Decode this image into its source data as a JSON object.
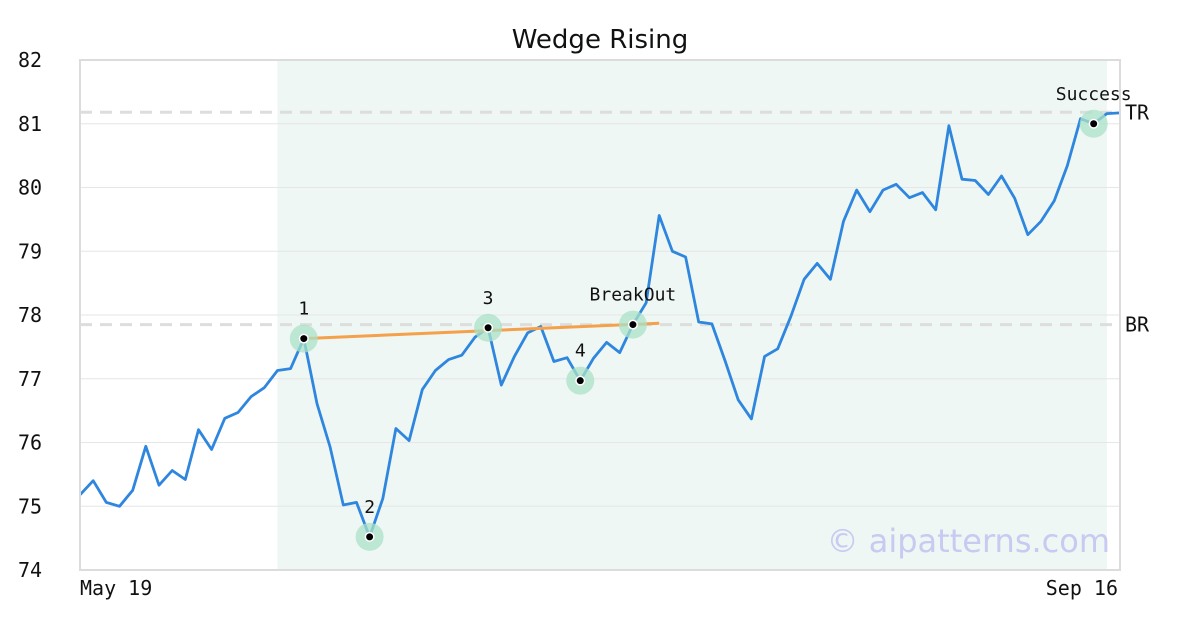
{
  "chart_data": {
    "type": "line",
    "title": "Wedge Rising",
    "ylim": [
      74,
      82
    ],
    "y_ticks": [
      "74",
      "75",
      "76",
      "77",
      "78",
      "79",
      "80",
      "81",
      "82"
    ],
    "x_tick_labels": [
      "May 19",
      "Sep 16"
    ],
    "grid": "horizontal",
    "series": [
      {
        "color": "#2e86de",
        "values": [
          75.18,
          75.4,
          75.06,
          75.0,
          75.25,
          75.94,
          75.33,
          75.56,
          75.42,
          76.2,
          75.89,
          76.38,
          76.47,
          76.72,
          76.86,
          77.13,
          77.16,
          77.63,
          76.61,
          75.93,
          75.02,
          75.06,
          74.52,
          75.12,
          76.22,
          76.03,
          76.83,
          77.13,
          77.3,
          77.37,
          77.65,
          77.8,
          76.9,
          77.35,
          77.72,
          77.82,
          77.27,
          77.33,
          76.97,
          77.32,
          77.57,
          77.41,
          77.85,
          78.19,
          79.56,
          79.0,
          78.91,
          77.89,
          77.86,
          77.28,
          76.67,
          76.37,
          77.35,
          77.47,
          77.98,
          78.56,
          78.81,
          78.56,
          79.47,
          79.96,
          79.62,
          79.96,
          80.05,
          79.84,
          79.92,
          79.65,
          80.97,
          80.13,
          80.11,
          79.89,
          80.18,
          79.83,
          79.26,
          79.47,
          79.79,
          80.34,
          81.08,
          81.0,
          81.16,
          81.17
        ]
      }
    ],
    "pattern_region": {
      "start_index": 15,
      "end_index": 78,
      "color": "#eef7f4"
    },
    "trendline": {
      "color": "#f5a04a",
      "x1": 17,
      "y1": 77.63,
      "x2": 44,
      "y2": 77.87
    },
    "levels": [
      {
        "label": "TR",
        "value": 81.18
      },
      {
        "label": "BR",
        "value": 77.85
      }
    ],
    "points": [
      {
        "label": "1",
        "x": 17,
        "y": 77.63
      },
      {
        "label": "2",
        "x": 22,
        "y": 74.52
      },
      {
        "label": "3",
        "x": 31,
        "y": 77.8
      },
      {
        "label": "4",
        "x": 38,
        "y": 76.97
      },
      {
        "label": "BreakOut",
        "x": 42,
        "y": 77.85
      },
      {
        "label": "Success",
        "x": 77,
        "y": 81.0
      }
    ],
    "watermark": "© aipatterns.com"
  }
}
